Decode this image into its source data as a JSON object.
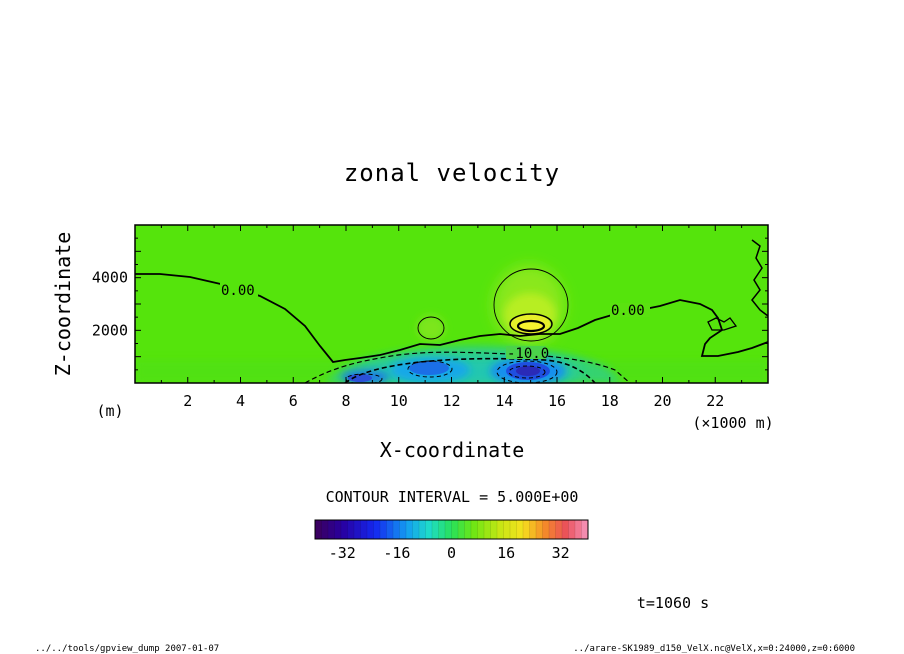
{
  "chart_data": {
    "type": "heatmap",
    "title": "zonal velocity",
    "xlabel": "X-coordinate",
    "ylabel": "Z-coordinate",
    "x_unit": "(×1000 m)",
    "y_unit": "(m)",
    "x_range": [
      0,
      24
    ],
    "y_range": [
      0,
      6000
    ],
    "x_ticks": [
      "2",
      "4",
      "6",
      "8",
      "10",
      "12",
      "14",
      "16",
      "18",
      "20",
      "22"
    ],
    "y_ticks": [
      "2000",
      "4000"
    ],
    "contour_interval_text": "CONTOUR INTERVAL = 5.000E+00",
    "contour_labels": [
      {
        "text": "0.00",
        "x": 3.8,
        "z": 3450
      },
      {
        "text": "0.00",
        "x": 18.7,
        "z": 2700
      },
      {
        "text": "-10.0",
        "x": 14.8,
        "z": 1140
      }
    ],
    "colorbar": {
      "range": [
        -40,
        40
      ],
      "tick_values": [
        -32,
        -16,
        0,
        16,
        32
      ],
      "tick_labels": [
        "-32",
        "-16",
        "0",
        "16",
        "32"
      ]
    },
    "features": [
      {
        "kind": "positive_core",
        "x": 15.0,
        "z": 2250,
        "peak": 18
      },
      {
        "kind": "positive_core",
        "x": 11.2,
        "z": 2100,
        "peak": 5
      },
      {
        "kind": "negative_core",
        "x": 14.9,
        "z": 450,
        "peak": -26
      },
      {
        "kind": "negative_core",
        "x": 11.0,
        "z": 500,
        "peak": -18
      },
      {
        "kind": "negative_core",
        "x": 8.6,
        "z": 300,
        "peak": -14
      }
    ]
  },
  "time_label": "t=1060 s",
  "footer_left": "../../tools/gpview_dump  2007-01-07",
  "footer_right": "../arare-SK1989_d150_VelX.nc@VelX,x=0:24000,z=0:6000"
}
